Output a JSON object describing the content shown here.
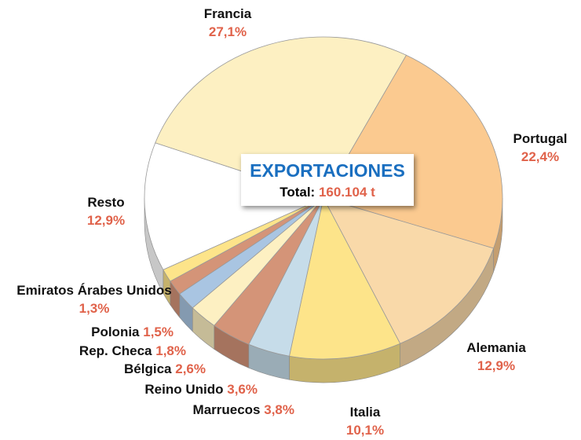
{
  "chart_data": {
    "type": "pie",
    "categories": [
      "Francia",
      "Portugal",
      "Alemania",
      "Italia",
      "Marruecos",
      "Reino Unido",
      "Bélgica",
      "Rep. Checa",
      "Polonia",
      "Emiratos Árabes Unidos",
      "Resto"
    ],
    "values": [
      27.1,
      22.4,
      12.9,
      10.1,
      3.8,
      3.6,
      2.6,
      1.8,
      1.5,
      1.3,
      12.9
    ],
    "value_labels": [
      "27,1%",
      "22,4%",
      "12,9%",
      "10,1%",
      "3,8%",
      "3,6%",
      "2,6%",
      "1,8%",
      "1,5%",
      "1,3%",
      "12,9%"
    ],
    "colors": [
      "#fdf0c2",
      "#fbca90",
      "#f9d9a9",
      "#fde48a",
      "#c6dce9",
      "#d49478",
      "#fdf0c2",
      "#a9c5e2",
      "#d49478",
      "#fde48a",
      "#ffffff"
    ],
    "center_box": {
      "title": "EXPORTACIONES",
      "total_label": "Total:",
      "total": "160.104 t"
    }
  }
}
